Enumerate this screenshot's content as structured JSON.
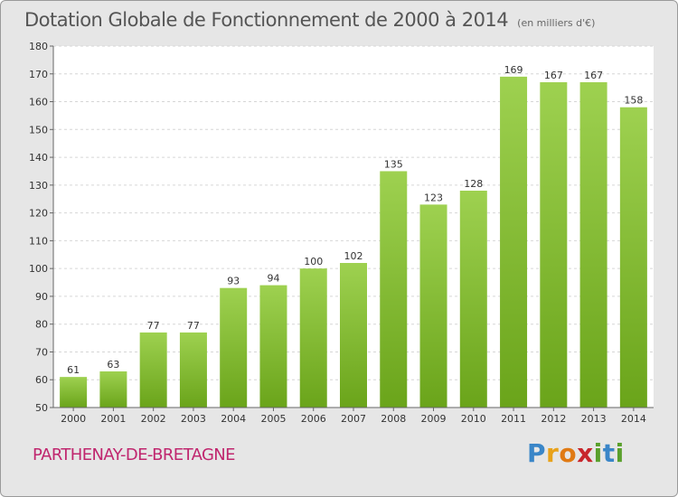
{
  "title": "Dotation Globale de Fonctionnement de 2000 à 2014",
  "subtitle": "(en milliers d'€)",
  "commune": "PARTHENAY-DE-BRETAGNE",
  "logo": {
    "letters": [
      "P",
      "r",
      "o",
      "x",
      "i",
      "t",
      "i"
    ],
    "colors": [
      "#3a86c8",
      "#e8a21a",
      "#e07a14",
      "#c8262c",
      "#5aa02c",
      "#3a86c8",
      "#5aa02c"
    ]
  },
  "colors": {
    "bar_top": "#9ed150",
    "bar_bottom": "#6aa41a",
    "plot_bg": "#ffffff",
    "grid": "#d6d6d6",
    "text": "#333333"
  },
  "chart_data": {
    "type": "bar",
    "categories": [
      "2000",
      "2001",
      "2002",
      "2003",
      "2004",
      "2005",
      "2006",
      "2007",
      "2008",
      "2009",
      "2010",
      "2011",
      "2012",
      "2013",
      "2014"
    ],
    "values": [
      61,
      63,
      77,
      77,
      93,
      94,
      100,
      102,
      135,
      123,
      128,
      169,
      167,
      167,
      158
    ],
    "title": "Dotation Globale de Fonctionnement de 2000 à 2014",
    "subtitle": "(en milliers d'€)",
    "ylim": [
      50,
      180
    ],
    "yticks": [
      50,
      60,
      70,
      80,
      90,
      100,
      110,
      120,
      130,
      140,
      150,
      160,
      170,
      180
    ],
    "grid": true
  }
}
